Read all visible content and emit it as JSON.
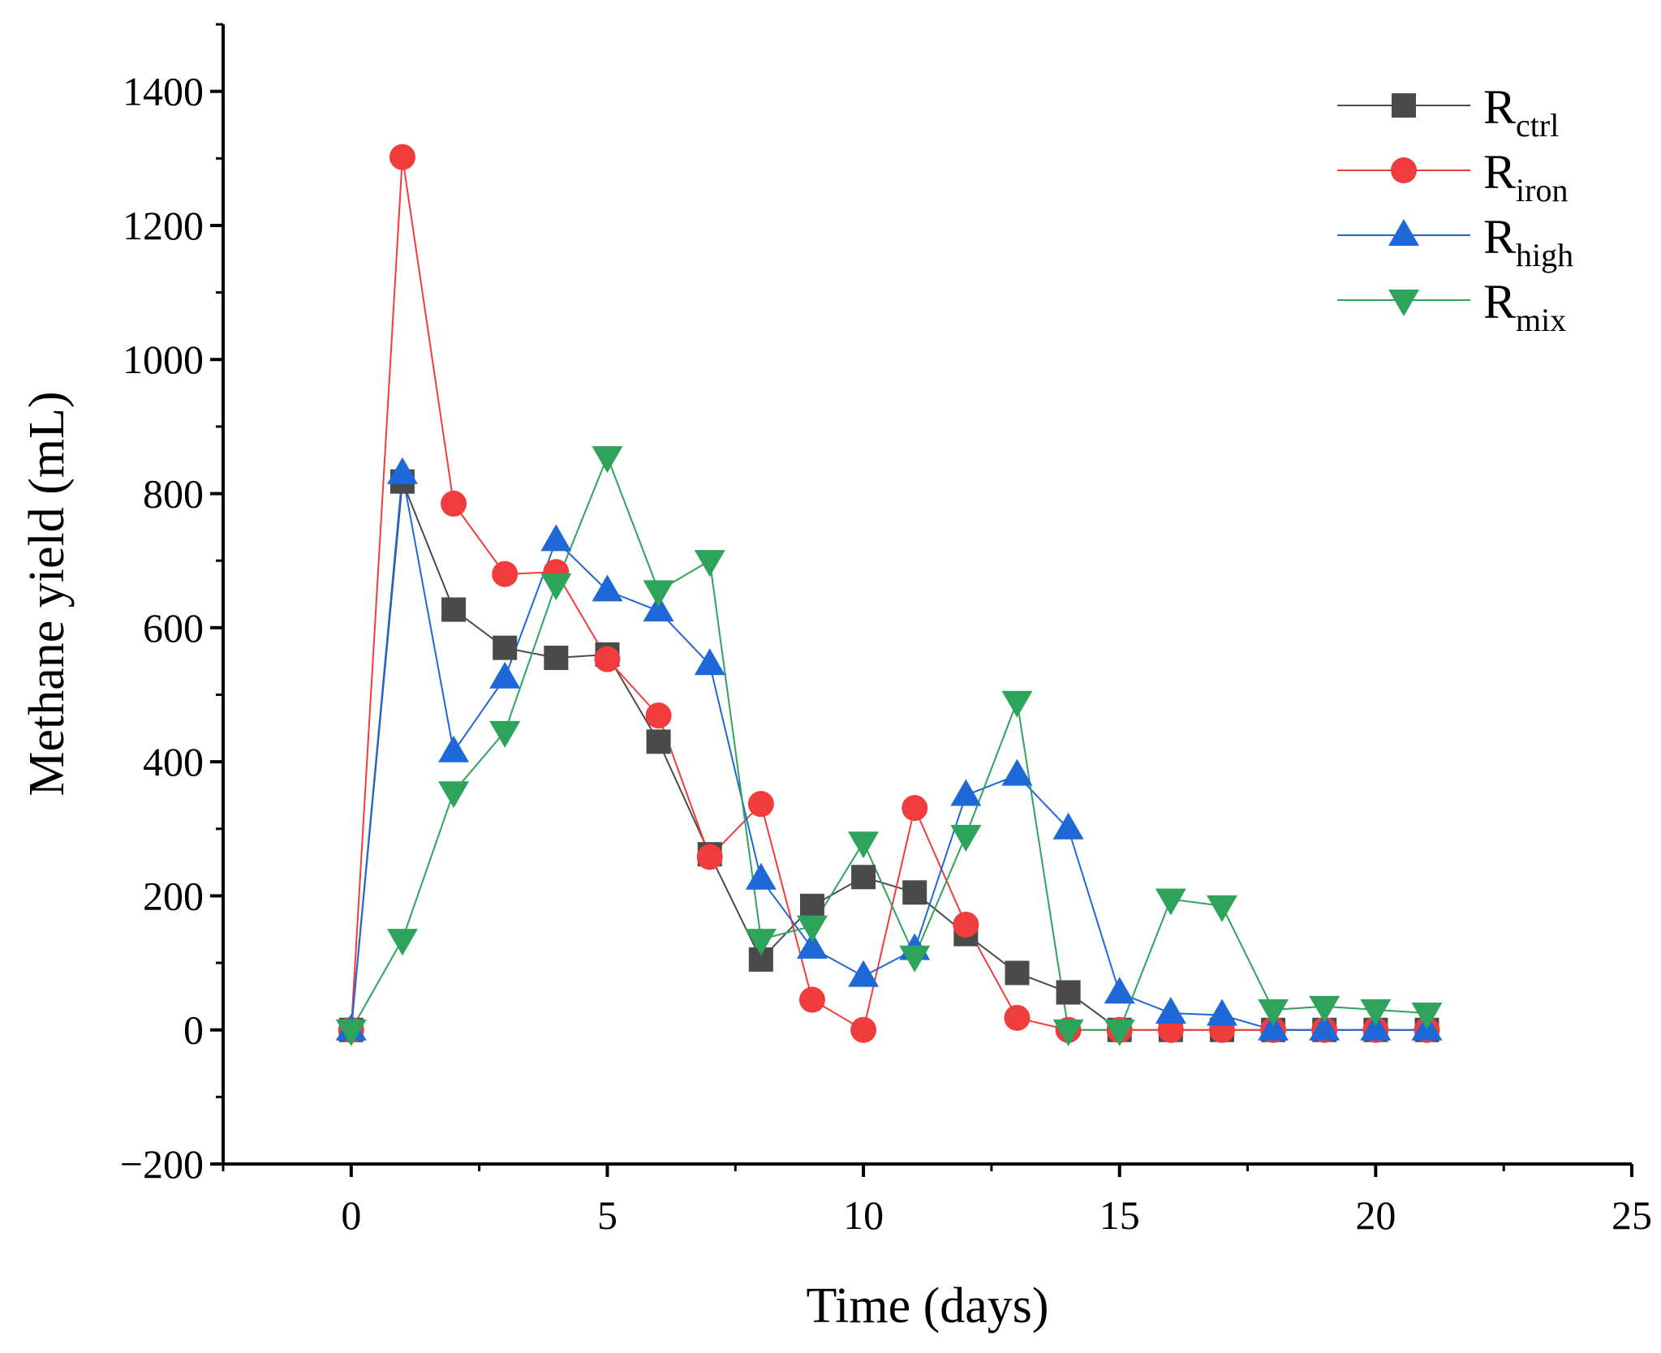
{
  "chart_data": {
    "type": "line",
    "title": "",
    "xlabel": "Time (days)",
    "ylabel": "Methane yield (mL)",
    "xlim": [
      -2.5,
      25
    ],
    "ylim": [
      -200,
      1500
    ],
    "xticks": [
      0,
      5,
      10,
      15,
      20,
      25
    ],
    "xtick_labels": [
      "0",
      "5",
      "10",
      "15",
      "20",
      "25"
    ],
    "yticks": [
      -200,
      0,
      200,
      400,
      600,
      800,
      1000,
      1200,
      1400
    ],
    "ytick_labels": [
      "−200",
      "0",
      "200",
      "400",
      "600",
      "800",
      "1000",
      "1200",
      "1400"
    ],
    "grid": false,
    "legend_position": "top-right",
    "x": [
      0,
      1,
      2,
      3,
      4,
      5,
      6,
      7,
      8,
      9,
      10,
      11,
      12,
      13,
      14,
      15,
      16,
      17,
      18,
      19,
      20,
      21
    ],
    "series": [
      {
        "name": "R",
        "subscript": "ctrl",
        "marker": "square",
        "color": "#4a4a4a",
        "values": [
          0,
          818,
          627,
          570,
          555,
          560,
          430,
          262,
          105,
          185,
          228,
          205,
          143,
          85,
          56,
          0,
          0,
          0,
          0,
          0,
          0,
          0
        ]
      },
      {
        "name": "R",
        "subscript": "iron",
        "marker": "circle",
        "color": "#f03c3c",
        "values": [
          0,
          1302,
          785,
          680,
          683,
          553,
          469,
          258,
          337,
          45,
          0,
          331,
          157,
          18,
          0,
          0,
          0,
          0,
          0,
          0,
          0,
          0
        ]
      },
      {
        "name": "R",
        "subscript": "high",
        "marker": "triangle-up",
        "color": "#1f68d8",
        "values": [
          0,
          830,
          415,
          525,
          730,
          655,
          625,
          545,
          225,
          122,
          80,
          120,
          350,
          380,
          300,
          55,
          25,
          22,
          0,
          0,
          0,
          0
        ]
      },
      {
        "name": "R",
        "subscript": "mix",
        "marker": "triangle-down",
        "color": "#2ea35c",
        "values": [
          0,
          135,
          355,
          445,
          665,
          855,
          655,
          700,
          135,
          155,
          280,
          110,
          290,
          490,
          0,
          0,
          195,
          185,
          30,
          35,
          30,
          25
        ]
      }
    ]
  }
}
